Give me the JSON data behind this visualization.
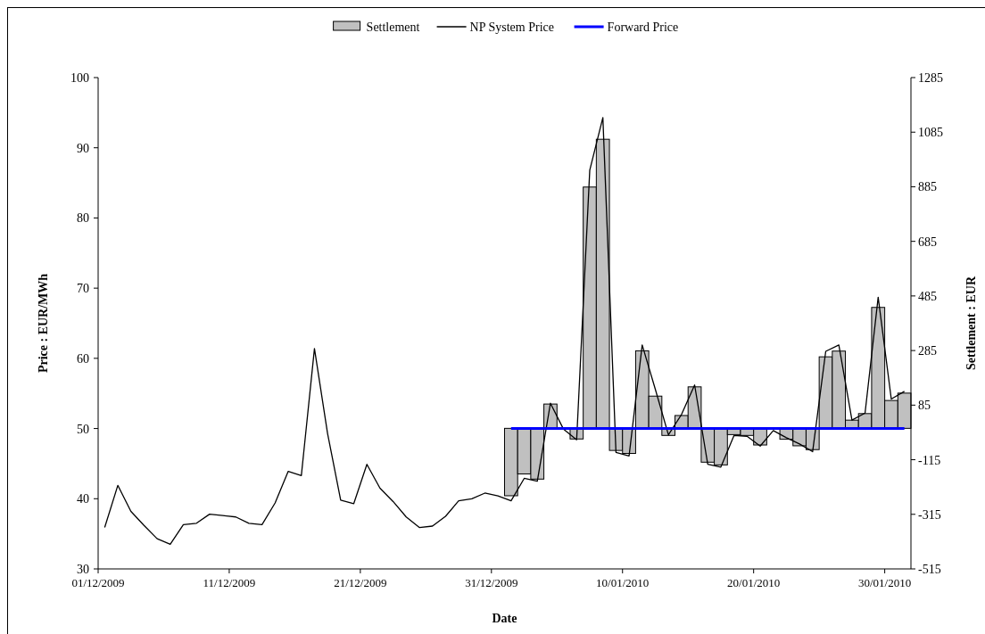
{
  "chart_data": {
    "type": "line",
    "xlabel": "Date",
    "ylabel": "Price : EUR/MWh",
    "y2label": "Settlement : EUR",
    "xlim": [
      "2009-12-01",
      "2010-02-01"
    ],
    "xticks": [
      {
        "value": "2009-12-01",
        "label": "01/12/2009"
      },
      {
        "value": "2009-12-11",
        "label": "11/12/2009"
      },
      {
        "value": "2009-12-21",
        "label": "21/12/2009"
      },
      {
        "value": "2009-12-31",
        "label": "31/12/2009"
      },
      {
        "value": "2010-01-10",
        "label": "10/01/2010"
      },
      {
        "value": "2010-01-20",
        "label": "20/01/2010"
      },
      {
        "value": "2010-01-30",
        "label": "30/01/2010"
      }
    ],
    "ylim": [
      30,
      100
    ],
    "yticks": [
      30,
      40,
      50,
      60,
      70,
      80,
      90,
      100
    ],
    "y2lim": [
      -515,
      1285
    ],
    "y2ticks": [
      -515,
      -315,
      -115,
      85,
      285,
      485,
      685,
      885,
      1085,
      1285
    ],
    "legend": "top",
    "grid": false,
    "marker": "none",
    "series": [
      {
        "name": "Settlement",
        "type": "bar",
        "axis": "y2",
        "color": "#c0c0c0",
        "x": [
          "2010-01-01T12:00",
          "2010-01-02T12:00",
          "2010-01-03T12:00",
          "2010-01-04T12:00",
          "2010-01-05T12:00",
          "2010-01-06T12:00",
          "2010-01-07T12:00",
          "2010-01-08T12:00",
          "2010-01-09T12:00",
          "2010-01-10T12:00",
          "2010-01-11T12:00",
          "2010-01-12T12:00",
          "2010-01-13T12:00",
          "2010-01-14T12:00",
          "2010-01-15T12:00",
          "2010-01-16T12:00",
          "2010-01-17T12:00",
          "2010-01-18T12:00",
          "2010-01-19T12:00",
          "2010-01-20T12:00",
          "2010-01-21T12:00",
          "2010-01-22T12:00",
          "2010-01-23T12:00",
          "2010-01-24T12:00",
          "2010-01-25T12:00",
          "2010-01-26T12:00",
          "2010-01-27T12:00",
          "2010-01-28T12:00",
          "2010-01-29T12:00",
          "2010-01-30T12:00",
          "2010-01-31T12:00"
        ],
        "values": [
          -247,
          -167,
          -186,
          89,
          -3,
          -39,
          884,
          1059,
          -81,
          -92,
          284,
          118,
          -26,
          47,
          152,
          -124,
          -134,
          -23,
          -26,
          -61,
          -2,
          -40,
          -64,
          -78,
          262,
          283,
          30,
          54,
          443,
          102,
          129
        ]
      },
      {
        "name": "NP System Price",
        "color": "#000000",
        "x": [
          "2009-12-01T12:00",
          "2009-12-02T12:00",
          "2009-12-03T12:00",
          "2009-12-04T12:00",
          "2009-12-05T12:00",
          "2009-12-06T12:00",
          "2009-12-07T12:00",
          "2009-12-08T12:00",
          "2009-12-09T12:00",
          "2009-12-10T12:00",
          "2009-12-11T12:00",
          "2009-12-12T12:00",
          "2009-12-13T12:00",
          "2009-12-14T12:00",
          "2009-12-15T12:00",
          "2009-12-16T12:00",
          "2009-12-17T12:00",
          "2009-12-18T12:00",
          "2009-12-19T12:00",
          "2009-12-20T12:00",
          "2009-12-21T12:00",
          "2009-12-22T12:00",
          "2009-12-23T12:00",
          "2009-12-24T12:00",
          "2009-12-25T12:00",
          "2009-12-26T12:00",
          "2009-12-27T12:00",
          "2009-12-28T12:00",
          "2009-12-29T12:00",
          "2009-12-30T12:00",
          "2009-12-31T12:00",
          "2010-01-01T12:00",
          "2010-01-02T12:00",
          "2010-01-03T12:00",
          "2010-01-04T12:00",
          "2010-01-05T12:00",
          "2010-01-06T12:00",
          "2010-01-07T12:00",
          "2010-01-08T12:00",
          "2010-01-09T12:00",
          "2010-01-10T12:00",
          "2010-01-11T12:00",
          "2010-01-12T12:00",
          "2010-01-13T12:00",
          "2010-01-14T12:00",
          "2010-01-15T12:00",
          "2010-01-16T12:00",
          "2010-01-17T12:00",
          "2010-01-18T12:00",
          "2010-01-19T12:00",
          "2010-01-20T12:00",
          "2010-01-21T12:00",
          "2010-01-22T12:00",
          "2010-01-23T12:00",
          "2010-01-24T12:00",
          "2010-01-25T12:00",
          "2010-01-26T12:00",
          "2010-01-27T12:00",
          "2010-01-28T12:00",
          "2010-01-29T12:00",
          "2010-01-30T12:00",
          "2010-01-31T12:00"
        ],
        "values": [
          35.9,
          41.9,
          38.2,
          36.2,
          34.3,
          33.5,
          36.3,
          36.5,
          37.8,
          37.6,
          37.4,
          36.5,
          36.3,
          39.4,
          43.9,
          43.3,
          61.4,
          49.3,
          39.8,
          39.3,
          44.9,
          41.5,
          39.6,
          37.4,
          35.9,
          36.1,
          37.5,
          39.7,
          40.0,
          40.8,
          40.4,
          39.7,
          42.9,
          42.5,
          53.6,
          49.9,
          48.4,
          86.8,
          94.3,
          46.6,
          46.1,
          61.9,
          55.6,
          49.1,
          52.0,
          56.2,
          44.9,
          44.5,
          49.0,
          48.9,
          47.5,
          49.7,
          48.7,
          47.8,
          46.7,
          61.0,
          61.9,
          51.2,
          52.2,
          68.7,
          54.2,
          55.3
        ]
      },
      {
        "name": "Forward Price",
        "color": "#0000ff",
        "x": [
          "2010-01-01T12:00",
          "2010-01-31T12:00"
        ],
        "values": [
          50,
          50
        ]
      }
    ]
  }
}
